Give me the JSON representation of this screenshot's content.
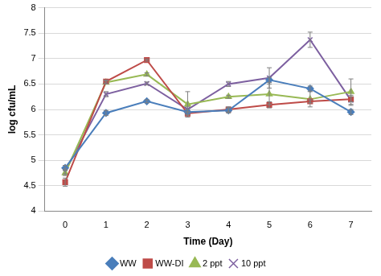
{
  "chart_data": {
    "type": "line",
    "x_label": "Time (Day)",
    "y_label": "log cfu/mL",
    "x": [
      0,
      1,
      2,
      3,
      4,
      5,
      6,
      7
    ],
    "xlim": [
      -0.5,
      7.5
    ],
    "xticks": [
      0,
      1,
      2,
      3,
      4,
      5,
      6,
      7
    ],
    "ylim": [
      4,
      8
    ],
    "yticks": [
      4,
      4.5,
      5,
      5.5,
      6,
      6.5,
      7,
      7.5,
      8
    ],
    "grid": true,
    "legend": "bottom",
    "series": [
      {
        "name": "WW",
        "color": "#4a7ebb",
        "marker": "diamond",
        "values": [
          4.85,
          5.93,
          6.16,
          5.95,
          5.98,
          6.58,
          6.41,
          5.95
        ],
        "errors": [
          0.05,
          0.05,
          0.03,
          0.05,
          0.05,
          0.05,
          0.05,
          0.05
        ]
      },
      {
        "name": "WW-DI",
        "color": "#be4b48",
        "marker": "square",
        "values": [
          4.57,
          6.55,
          6.97,
          5.92,
          6.0,
          6.09,
          6.16,
          6.2
        ],
        "errors": [
          0.08,
          0.03,
          0.02,
          0.03,
          0.05,
          0.06,
          0.03,
          0.05
        ]
      },
      {
        "name": "2 ppt",
        "color": "#98b954",
        "marker": "triangle",
        "values": [
          4.75,
          6.53,
          6.69,
          6.1,
          6.25,
          6.3,
          6.2,
          6.35
        ],
        "errors": [
          0.05,
          0.03,
          0.03,
          0.25,
          0.03,
          0.2,
          0.15,
          0.25
        ]
      },
      {
        "name": "10 ppt",
        "color": "#7d60a0",
        "marker": "cross",
        "values": [
          4.78,
          6.3,
          6.51,
          6.0,
          6.5,
          6.62,
          7.37,
          6.18
        ],
        "errors": [
          0.05,
          0.05,
          0.03,
          0.05,
          0.05,
          0.2,
          0.15,
          0.1
        ]
      }
    ]
  }
}
